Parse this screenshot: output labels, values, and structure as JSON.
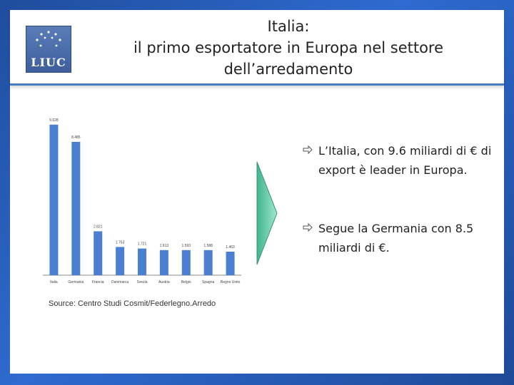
{
  "header": {
    "title_lines": [
      "Italia:",
      "il primo esportatore in Europa nel settore",
      "dell’arredamento"
    ],
    "logo_text": "LIUC"
  },
  "colors": {
    "bar": "#4a7fd1",
    "background": "#2e6bd0",
    "arrow": "#4fc8a0"
  },
  "chart_data": {
    "type": "bar",
    "categories": [
      "Italia",
      "Germania",
      "Francia",
      "Danimarca",
      "Svezia",
      "Austria",
      "Belgio",
      "Spagna",
      "Regno Unito"
    ],
    "values": [
      9.6,
      8.5,
      2.8,
      1.8,
      1.7,
      1.6,
      1.6,
      1.6,
      1.5
    ],
    "value_labels": [
      "9.628",
      "8.485",
      "2.821",
      "1.753",
      "1.721",
      "1.613",
      "1.593",
      "1.588",
      "1.463"
    ],
    "ylim": [
      0,
      10
    ]
  },
  "source": "Source: Centro Studi Cosmit/Federlegno.Arredo",
  "bullets": [
    "L’Italia, con 9.6 miliardi di € di export è leader in Europa.",
    "Segue la Germania con 8.5 miliardi di €."
  ],
  "icons": {
    "bullet": "arrow-bullet-icon",
    "arrow": "chevron-arrow-icon"
  }
}
